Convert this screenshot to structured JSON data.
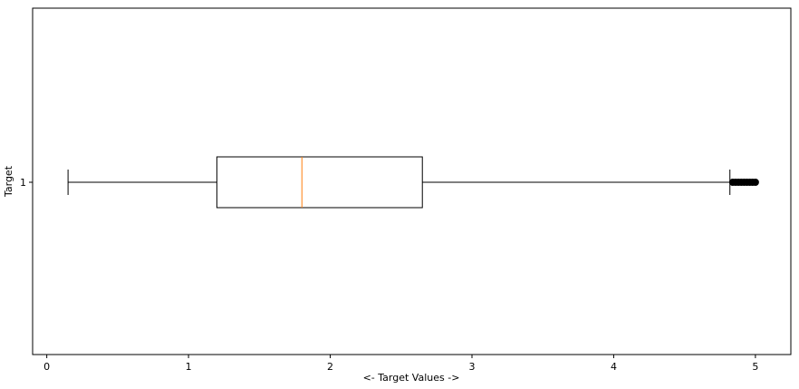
{
  "chart_data": {
    "type": "boxplot",
    "orientation": "horizontal",
    "title": "",
    "xlabel": "<-  Target Values  ->",
    "ylabel": "Target",
    "xlim": [
      -0.1,
      5.25
    ],
    "xticks": [
      0,
      1,
      2,
      3,
      4,
      5
    ],
    "yticks": [
      "1"
    ],
    "grid": false,
    "boxes": [
      {
        "category": "1",
        "whisker_low": 0.15,
        "q1": 1.2,
        "median": 1.8,
        "q3": 2.65,
        "whisker_high": 4.82,
        "outliers": [
          4.84,
          4.86,
          4.88,
          4.9,
          4.92,
          4.94,
          4.96,
          4.98,
          5.0
        ]
      }
    ],
    "colors": {
      "box": "#000000",
      "median": "#ff7f0e",
      "outlier_fill": "#000000"
    }
  }
}
